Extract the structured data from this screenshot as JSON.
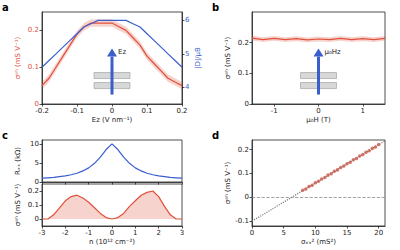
{
  "chart_data": [
    {
      "title": "a",
      "type": "line",
      "x": [
        -0.2,
        -0.18,
        -0.16,
        -0.14,
        -0.12,
        -0.1,
        -0.08,
        -0.06,
        -0.04,
        -0.02,
        0,
        0.02,
        0.04,
        0.06,
        0.08,
        0.1,
        0.12,
        0.14,
        0.16,
        0.18,
        0.2
      ],
      "xlabel": "Ez (V nm⁻¹)",
      "ylabel": "σᵃʰ (mS V⁻¹)",
      "y2label": "|D|/μB",
      "xlim": [
        -0.2,
        0.2
      ],
      "xticks": [
        -0.2,
        -0.1,
        0,
        0.1,
        0.2
      ],
      "ylim": [
        0,
        0.25
      ],
      "yticks": [
        0,
        0.1,
        0.2
      ],
      "y2lim": [
        3.5,
        6.25
      ],
      "y2ticks": [
        4,
        5,
        6
      ],
      "annotation": "Ez",
      "series": [
        {
          "color": "#e0503c",
          "values": [
            0.05,
            0.07,
            0.1,
            0.13,
            0.16,
            0.19,
            0.21,
            0.22,
            0.22,
            0.22,
            0.22,
            0.21,
            0.2,
            0.18,
            0.16,
            0.13,
            0.11,
            0.09,
            0.07,
            0.06,
            0.05
          ],
          "error": [
            0.01,
            0.01,
            0.01,
            0.01,
            0.01,
            0.01,
            0.01,
            0.01,
            0.01,
            0.01,
            0.01,
            0.01,
            0.01,
            0.01,
            0.01,
            0.01,
            0.01,
            0.01,
            0.01,
            0.01,
            0.01
          ]
        },
        {
          "color": "#3a5fcd",
          "axis": "y2",
          "values": [
            4.6,
            4.8,
            5.0,
            5.2,
            5.4,
            5.6,
            5.8,
            5.9,
            6.0,
            6.0,
            6.0,
            6.0,
            6.0,
            5.9,
            5.8,
            5.6,
            5.4,
            5.2,
            5.0,
            4.8,
            4.6
          ]
        }
      ]
    },
    {
      "title": "b",
      "type": "line",
      "x": [
        -1.5,
        -1.25,
        -1,
        -0.75,
        -0.5,
        -0.25,
        0,
        0.25,
        0.5,
        0.75,
        1,
        1.25,
        1.5
      ],
      "xlabel": "μ₀H (T)",
      "ylabel": "σᵃʰ (mS V⁻¹)",
      "xlim": [
        -1.5,
        1.5
      ],
      "xticks": [
        -1,
        0,
        1
      ],
      "ylim": [
        0,
        0.3
      ],
      "yticks": [
        0,
        0.1,
        0.2
      ],
      "annotation": "μ₀Hz",
      "series": [
        {
          "color": "#e0503c",
          "values": [
            0.215,
            0.21,
            0.214,
            0.21,
            0.213,
            0.209,
            0.212,
            0.21,
            0.214,
            0.21,
            0.213,
            0.21,
            0.214
          ],
          "error": [
            0.008,
            0.008,
            0.008,
            0.008,
            0.008,
            0.008,
            0.008,
            0.008,
            0.008,
            0.008,
            0.008,
            0.008,
            0.008
          ]
        }
      ]
    },
    {
      "title": "c",
      "type": "line",
      "x": [
        -3,
        -2.75,
        -2.5,
        -2.25,
        -2,
        -1.75,
        -1.5,
        -1.25,
        -1,
        -0.75,
        -0.5,
        -0.25,
        0,
        0.25,
        0.5,
        0.75,
        1,
        1.25,
        1.5,
        1.75,
        2,
        2.25,
        2.5,
        2.75,
        3
      ],
      "ylabel": "Rₓₓ (kΩ)",
      "tick_labels": "y",
      "xlim": [
        -3,
        3
      ],
      "xticks": [
        -3,
        -2,
        -1,
        0,
        1,
        2,
        3
      ],
      "ylim": [
        0,
        11
      ],
      "yticks": [
        0,
        5,
        10
      ],
      "series": [
        {
          "color": "#3a5fcd",
          "values": [
            1.0,
            1.1,
            1.2,
            1.4,
            1.6,
            1.9,
            2.3,
            2.9,
            3.7,
            4.9,
            6.5,
            8.5,
            10,
            8.5,
            6.5,
            4.9,
            3.7,
            2.9,
            2.3,
            1.9,
            1.6,
            1.4,
            1.2,
            1.1,
            1.0
          ]
        }
      ]
    },
    {
      "type": "area",
      "x": [
        -3,
        -2.75,
        -2.5,
        -2.25,
        -2,
        -1.75,
        -1.5,
        -1.25,
        -1,
        -0.75,
        -0.5,
        -0.25,
        0,
        0.25,
        0.5,
        0.75,
        1,
        1.25,
        1.5,
        1.75,
        2,
        2.25,
        2.5,
        2.75,
        3
      ],
      "xlabel": "n (10¹² cm⁻²)",
      "ylabel": "σᵃʰ (mS V⁻¹)",
      "xlim": [
        -3,
        3
      ],
      "xticks": [
        -3,
        -2,
        -1,
        0,
        1,
        2,
        3
      ],
      "ylim": [
        -0.05,
        0.25
      ],
      "yticks": [
        0,
        0.1,
        0.2
      ],
      "series": [
        {
          "color": "#e0503c",
          "values": [
            0.0,
            0.0,
            0.03,
            0.08,
            0.13,
            0.16,
            0.17,
            0.15,
            0.12,
            0.08,
            0.04,
            0.01,
            0.0,
            0.01,
            0.04,
            0.09,
            0.13,
            0.17,
            0.19,
            0.2,
            0.16,
            0.09,
            0.03,
            0.0,
            0.0
          ]
        }
      ]
    },
    {
      "title": "d",
      "type": "scatter",
      "xlabel": "σₓₓ² (mS²)",
      "ylabel": "σᵃʰ (mS V⁻¹)",
      "xlim": [
        0,
        21
      ],
      "xticks": [
        0,
        5,
        10,
        15,
        20
      ],
      "ylim": [
        -0.12,
        0.24
      ],
      "yticks": [
        -0.1,
        0,
        0.1,
        0.2
      ],
      "hline": 0,
      "series": [
        {
          "type": "scatter",
          "color": "#e0503c",
          "marker": "circle",
          "x": [
            8,
            8.5,
            9,
            9.5,
            10,
            10.5,
            11,
            11.5,
            12,
            12.5,
            13,
            13.5,
            14,
            14.5,
            15,
            15.5,
            16,
            16.5,
            17,
            17.5,
            18,
            18.5,
            19,
            19.5,
            20
          ],
          "values": [
            0.03,
            0.035,
            0.045,
            0.051,
            0.061,
            0.067,
            0.077,
            0.083,
            0.093,
            0.099,
            0.109,
            0.115,
            0.125,
            0.131,
            0.141,
            0.147,
            0.157,
            0.163,
            0.173,
            0.179,
            0.189,
            0.195,
            0.205,
            0.211,
            0.221
          ]
        },
        {
          "type": "line",
          "color": "#777777",
          "line_style": "dotted",
          "x": [
            0,
            21
          ],
          "values": [
            -0.1,
            0.236
          ]
        }
      ]
    }
  ]
}
